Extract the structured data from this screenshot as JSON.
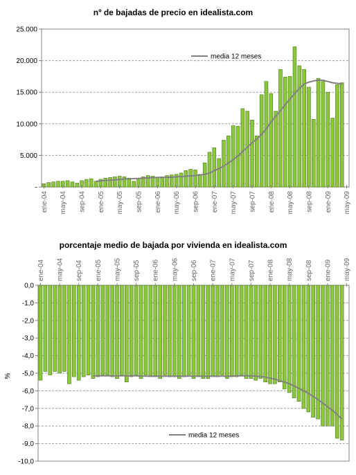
{
  "chart_data": [
    {
      "type": "bar",
      "title": "nº de bajadas de precio en idealista.com",
      "xlabel": "",
      "ylabel": "",
      "ylim": [
        0,
        25000
      ],
      "yticks": [
        "-",
        "5.000",
        "10.000",
        "15.000",
        "20.000",
        "25.000"
      ],
      "x_tick_labels": [
        "ene-04",
        "may-04",
        "sep-04",
        "ene-05",
        "may-05",
        "sep-05",
        "ene-06",
        "may-06",
        "sep-06",
        "ene-07",
        "may-07",
        "sep-07",
        "ene-08",
        "may-08",
        "sep-08",
        "ene-09",
        "may-09"
      ],
      "grid": "horizontal dashed",
      "legend_position": "top-left",
      "colors": {
        "bar": "#8cc63f",
        "bar_edge": "#4a7a10",
        "line": "#808080"
      },
      "series": [
        {
          "values": [
            500,
            700,
            800,
            900,
            900,
            1000,
            800,
            600,
            1000,
            1200,
            1300,
            900,
            1200,
            1400,
            1500,
            1600,
            1700,
            1600,
            1400,
            900,
            1400,
            1600,
            1800,
            1700,
            1500,
            1600,
            1800,
            1900,
            2000,
            2200,
            2600,
            2800,
            2700,
            2000,
            3800,
            5500,
            6200,
            4500,
            7400,
            8100,
            9700,
            9600,
            12400,
            12000,
            10600,
            8100,
            14600,
            16700,
            14800,
            12000,
            18600,
            17400,
            17500,
            22200,
            19200,
            18600,
            15800,
            10700,
            17200,
            16700,
            15000,
            10900,
            16200,
            16500
          ]
        },
        {
          "name": "media 12 meses",
          "values": [
            null,
            null,
            null,
            null,
            null,
            null,
            null,
            null,
            null,
            null,
            null,
            900,
            950,
            1010,
            1070,
            1130,
            1200,
            1260,
            1300,
            1320,
            1350,
            1380,
            1420,
            1480,
            1500,
            1510,
            1520,
            1550,
            1600,
            1650,
            1700,
            1750,
            1800,
            1900,
            2000,
            2200,
            2600,
            2900,
            3300,
            3800,
            4300,
            4900,
            5600,
            6300,
            7000,
            7600,
            8300,
            9200,
            10300,
            11200,
            12100,
            13000,
            13900,
            14800,
            15600,
            16300,
            16600,
            16800,
            16900,
            16900,
            16700,
            16500,
            16400,
            16300
          ]
        }
      ]
    },
    {
      "type": "bar",
      "title": "porcentaje medio de bajada por vivienda en idealista.com",
      "xlabel": "",
      "ylabel": "%",
      "ylim": [
        -10,
        0
      ],
      "yticks": [
        "0,0",
        "-1,0",
        "-2,0",
        "-3,0",
        "-4,0",
        "-5,0",
        "-6,0",
        "-7,0",
        "-8,0",
        "-9,0",
        "-10,0"
      ],
      "x_tick_labels": [
        "ene-04",
        "may-04",
        "sep-04",
        "ene-05",
        "may-05",
        "sep-05",
        "ene-06",
        "may-06",
        "sep-06",
        "ene-07",
        "may-07",
        "sep-07",
        "ene-08",
        "may-08",
        "sep-08",
        "ene-09",
        "may-09"
      ],
      "grid": "horizontal dashed",
      "legend_position": "bottom-left",
      "colors": {
        "bar": "#8cc63f",
        "bar_edge": "#4a7a10",
        "line": "#808080"
      },
      "series": [
        {
          "values": [
            -5.4,
            -4.9,
            -5.1,
            -4.9,
            -5.0,
            -4.9,
            -5.6,
            -5.2,
            -5.4,
            -5.2,
            -5.1,
            -5.3,
            -5.2,
            -5.1,
            -5.1,
            -5.2,
            -5.3,
            -5.1,
            -5.5,
            -5.2,
            -5.1,
            -5.3,
            -5.1,
            -5.2,
            -5.2,
            -5.3,
            -5.1,
            -5.2,
            -5.2,
            -5.3,
            -5.2,
            -5.1,
            -5.3,
            -5.2,
            -5.3,
            -5.3,
            -5.2,
            -5.2,
            -5.1,
            -5.3,
            -5.2,
            -5.2,
            -5.1,
            -5.3,
            -5.3,
            -5.4,
            -5.3,
            -5.5,
            -5.6,
            -5.6,
            -5.5,
            -5.9,
            -6.1,
            -6.4,
            -6.6,
            -7.0,
            -7.2,
            -7.5,
            -7.6,
            -8.0,
            -8.0,
            -8.0,
            -8.7,
            -8.8
          ]
        },
        {
          "name": "media 12 meses",
          "values": [
            null,
            null,
            null,
            null,
            null,
            null,
            null,
            null,
            null,
            null,
            null,
            -5.15,
            -5.15,
            -5.15,
            -5.15,
            -5.15,
            -5.15,
            -5.15,
            -5.15,
            -5.15,
            -5.15,
            -5.16,
            -5.17,
            -5.17,
            -5.17,
            -5.17,
            -5.17,
            -5.17,
            -5.17,
            -5.17,
            -5.17,
            -5.17,
            -5.17,
            -5.17,
            -5.17,
            -5.17,
            -5.17,
            -5.17,
            -5.17,
            -5.17,
            -5.17,
            -5.15,
            -5.15,
            -5.14,
            -5.15,
            -5.16,
            -5.18,
            -5.22,
            -5.28,
            -5.34,
            -5.42,
            -5.5,
            -5.6,
            -5.72,
            -5.86,
            -6.0,
            -6.15,
            -6.32,
            -6.5,
            -6.7,
            -6.9,
            -7.1,
            -7.35,
            -7.6
          ]
        }
      ]
    }
  ]
}
